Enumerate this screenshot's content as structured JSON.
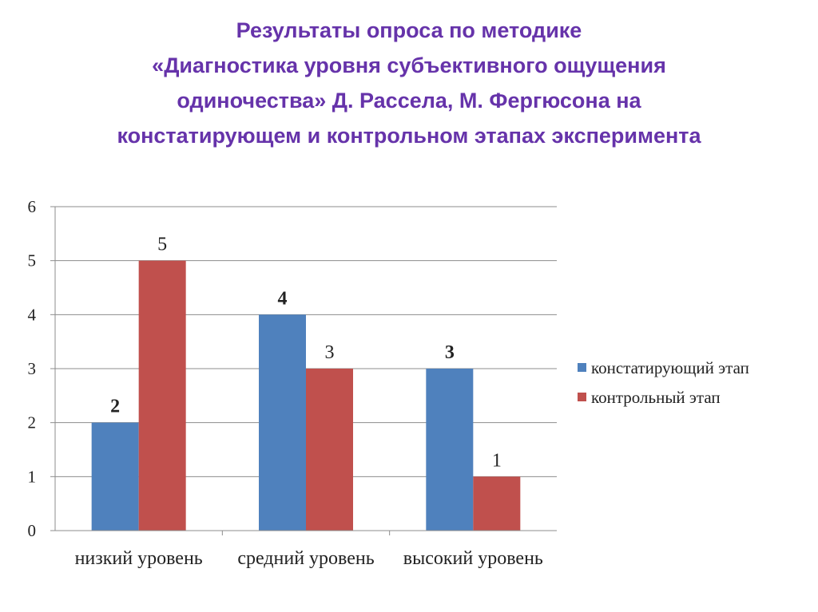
{
  "title_lines": [
    "Результаты опроса по методике",
    "«Диагностика уровня субъективного ощущения",
    "одиночества» Д. Рассела, М. Фергюсона на",
    "констатирующем и контрольном этапах эксперимента"
  ],
  "chart_data": {
    "type": "bar",
    "categories": [
      "низкий уровень",
      "средний уровень",
      "высокий уровень"
    ],
    "series": [
      {
        "name": "констатирующий этап",
        "values": [
          2,
          4,
          3
        ],
        "color": "#4f81bd",
        "label_style": "bold"
      },
      {
        "name": "контрольный этап",
        "values": [
          5,
          3,
          1
        ],
        "color": "#c0504d",
        "label_style": "normal"
      }
    ],
    "ylim": [
      0,
      6
    ],
    "yticks": [
      0,
      1,
      2,
      3,
      4,
      5,
      6
    ],
    "grid": true,
    "legend": "right",
    "xlabel": "",
    "ylabel": ""
  }
}
